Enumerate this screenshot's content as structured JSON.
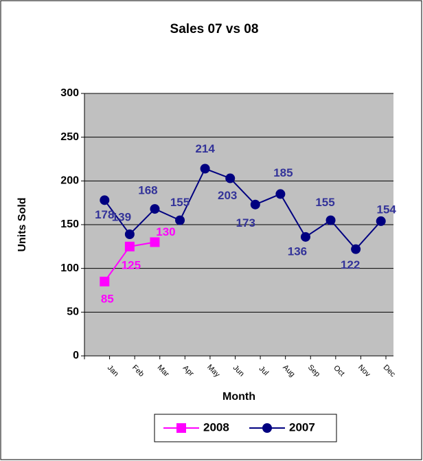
{
  "chart_data": {
    "type": "line",
    "title": "Sales 07 vs 08",
    "x_label": "Month",
    "y_label": "Units Sold",
    "categories": [
      "Jan",
      "Feb",
      "Mar",
      "Apr",
      "May",
      "Jun",
      "Jul",
      "Aug",
      "Sep",
      "Oct",
      "Nov",
      "Dec"
    ],
    "series": [
      {
        "name": "2008",
        "color": "#ff00ff",
        "marker": "square",
        "values": [
          85,
          125,
          130,
          null,
          null,
          null,
          null,
          null,
          null,
          null,
          null,
          null
        ]
      },
      {
        "name": "2007",
        "color": "#000080",
        "marker": "circle",
        "values": [
          178,
          139,
          168,
          155,
          214,
          203,
          173,
          185,
          136,
          155,
          122,
          154
        ]
      }
    ],
    "ylim": [
      0,
      300
    ],
    "yticks": [
      0,
      50,
      100,
      150,
      200,
      250,
      300
    ],
    "grid": true,
    "legend": "bottom"
  }
}
